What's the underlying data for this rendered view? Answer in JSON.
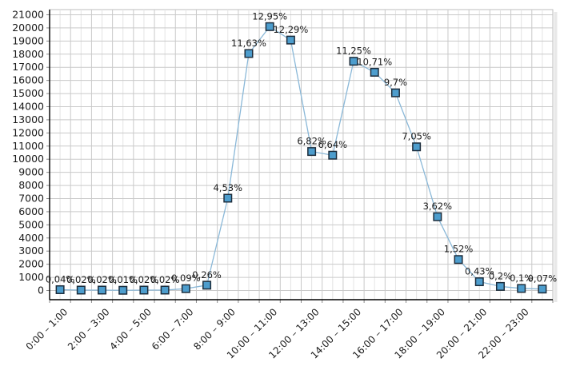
{
  "chart_data": {
    "type": "line",
    "title": "",
    "n_points": 24,
    "marker": "square",
    "grid": true,
    "legend": "none",
    "ylim": [
      0,
      21000
    ],
    "y_tick_step": 1000,
    "y_tick_labels": [
      "0",
      "1000",
      "2000",
      "3000",
      "4000",
      "5000",
      "6000",
      "7000",
      "8000",
      "9000",
      "10000",
      "11000",
      "12000",
      "13000",
      "14000",
      "15000",
      "16000",
      "17000",
      "18000",
      "19000",
      "20000",
      "21000"
    ],
    "x_labels_visible": [
      "0:00 – 1:00",
      "2:00 – 3:00",
      "4:00 – 5:00",
      "6:00 – 7:00",
      "8:00 – 9:00",
      "10:00 – 11:00",
      "12:00 – 13:00",
      "14:00 – 15:00",
      "16:00 – 17:00",
      "18:00 – 19:00",
      "20:00 – 21:00",
      "22:00 – 23:00"
    ],
    "x_label_positions": [
      0,
      2,
      4,
      6,
      8,
      10,
      12,
      14,
      16,
      18,
      20,
      22
    ],
    "point_labels": [
      "0,04%",
      "0,02%",
      "0,02%",
      "0,01%",
      "0,02%",
      "0,02%",
      "0,09%",
      "0,26%",
      "4,53%",
      "11,63%",
      "12,95%",
      "12,29%",
      "6,82%",
      "6,64%",
      "11,25%",
      "10,71%",
      "9,7%",
      "7,05%",
      "3,62%",
      "1,52%",
      "0,43%",
      "0,2%",
      "0,1%",
      "0,07%"
    ],
    "values": [
      62,
      31,
      31,
      16,
      31,
      31,
      140,
      404,
      7031,
      18050,
      20098,
      19074,
      10585,
      10305,
      17460,
      16622,
      15054,
      10942,
      5618,
      2359,
      667,
      310,
      155,
      109
    ],
    "colors": {
      "series_line": "#8ab8d8",
      "marker_fill": "#4d9dcd",
      "marker_stroke": "#1d2d3c",
      "grid_major": "#c9c9c9",
      "grid_minor": "#e4e4e4",
      "axis_line": "#000000",
      "tick_mark": "#8a8a8a",
      "plot_border": "#bdbdbd",
      "plot_shadow": "#e8e8e8",
      "text": "#1a1a1a",
      "background": "#ffffff"
    }
  }
}
